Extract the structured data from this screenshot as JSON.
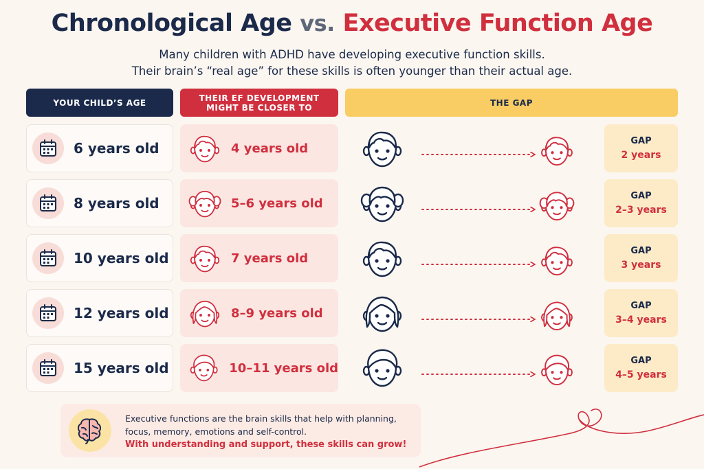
{
  "title": {
    "part1": "Chronological Age",
    "vs": "vs.",
    "part2": "Executive Function Age"
  },
  "subtitle": {
    "line1": "Many children with ADHD have developing executive function skills.",
    "line2": "Their brain’s “real age” for these skills is often younger than their actual age."
  },
  "headers": {
    "age": "YOUR CHILD’S AGE",
    "ef": "THEIR EF DEVELOPMENT MIGHT BE CLOSER TO",
    "gap": "THE GAP"
  },
  "rows": [
    {
      "age": "6 years old",
      "ef": "4 years old",
      "gap_label": "GAP",
      "gap": "2 years",
      "child": "boy"
    },
    {
      "age": "8 years old",
      "ef": "5–6 years old",
      "gap_label": "GAP",
      "gap": "2–3 years",
      "child": "girl-pigtails"
    },
    {
      "age": "10 years old",
      "ef": "7 years old",
      "gap_label": "GAP",
      "gap": "3 years",
      "child": "boy"
    },
    {
      "age": "12 years old",
      "ef": "8–9 years old",
      "gap_label": "GAP",
      "gap": "3–4 years",
      "child": "girl-long-hair"
    },
    {
      "age": "15 years old",
      "ef": "10–11 years old",
      "gap_label": "GAP",
      "gap": "4–5 years",
      "child": "teen-boy"
    }
  ],
  "icons": {
    "age_cell": "calendar-icon",
    "face": "child-face-icon",
    "arrow": "dotted-arrow-icon",
    "note": "brain-icon",
    "decoration": "heart-line-icon"
  },
  "note": {
    "line1": "Executive functions are the brain skills that help with planning, focus, memory, emotions and self-control.",
    "line2": "With understanding and support, these skills can grow!"
  },
  "colors": {
    "navy": "#1b2a4a",
    "red": "#d02f3e",
    "yellow": "#f9cd64",
    "background": "#fbf6f0"
  }
}
